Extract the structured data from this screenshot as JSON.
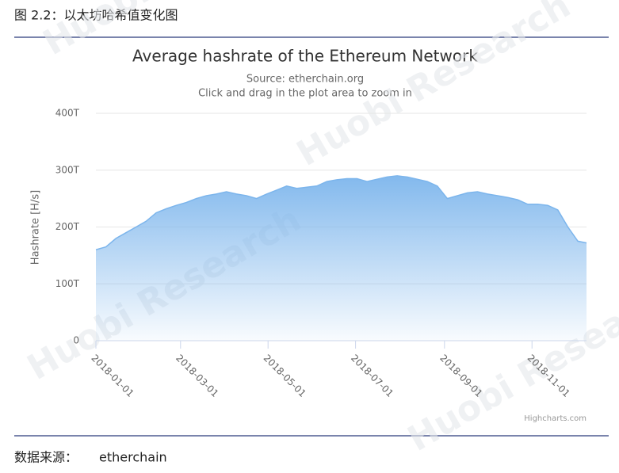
{
  "header": {
    "figure_title": "图 2.2：以太坊哈希值变化图"
  },
  "chart_data": {
    "type": "area",
    "title": "Average hashrate of the Ethereum Network",
    "subtitle": "Source: etherchain.org",
    "subtitle2": "Click and drag in the plot area to zoom in",
    "y_label": "Hashrate [H/s]",
    "credits": "Highcharts.com",
    "watermark": "Huobi Research",
    "color": "#7cb5ec",
    "grid": true,
    "x": [
      "2018-01-01",
      "2018-01-08",
      "2018-01-15",
      "2018-01-22",
      "2018-01-29",
      "2018-02-05",
      "2018-02-12",
      "2018-02-19",
      "2018-02-26",
      "2018-03-05",
      "2018-03-12",
      "2018-03-19",
      "2018-03-26",
      "2018-04-02",
      "2018-04-09",
      "2018-04-16",
      "2018-04-23",
      "2018-04-30",
      "2018-05-07",
      "2018-05-14",
      "2018-05-21",
      "2018-05-28",
      "2018-06-04",
      "2018-06-11",
      "2018-06-18",
      "2018-06-25",
      "2018-07-02",
      "2018-07-09",
      "2018-07-16",
      "2018-07-23",
      "2018-07-30",
      "2018-08-06",
      "2018-08-13",
      "2018-08-20",
      "2018-08-27",
      "2018-09-03",
      "2018-09-10",
      "2018-09-17",
      "2018-09-24",
      "2018-10-01",
      "2018-10-08",
      "2018-10-15",
      "2018-10-22",
      "2018-10-29",
      "2018-11-05",
      "2018-11-12",
      "2018-11-19",
      "2018-11-26",
      "2018-12-03",
      "2018-12-09"
    ],
    "values": [
      160,
      165,
      180,
      190,
      200,
      210,
      225,
      232,
      238,
      243,
      250,
      255,
      258,
      262,
      258,
      255,
      250,
      258,
      265,
      272,
      268,
      270,
      272,
      280,
      283,
      285,
      285,
      280,
      284,
      288,
      290,
      288,
      284,
      280,
      272,
      250,
      255,
      260,
      262,
      258,
      255,
      252,
      248,
      240,
      240,
      238,
      230,
      200,
      175,
      172
    ],
    "xlim": [
      "2018-01-01",
      "2018-12-09"
    ],
    "xticks": [
      "2018-01-01",
      "2018-03-01",
      "2018-05-01",
      "2018-07-01",
      "2018-09-01",
      "2018-11-01"
    ],
    "ylim": [
      0,
      400
    ],
    "yticks": [
      0,
      {
        "value": 100,
        "label": "100T"
      },
      {
        "value": 200,
        "label": "200T"
      },
      {
        "value": 300,
        "label": "300T"
      },
      {
        "value": 400,
        "label": "400T"
      }
    ]
  },
  "footer": {
    "source_label": "数据来源：",
    "source": "etherchain"
  }
}
